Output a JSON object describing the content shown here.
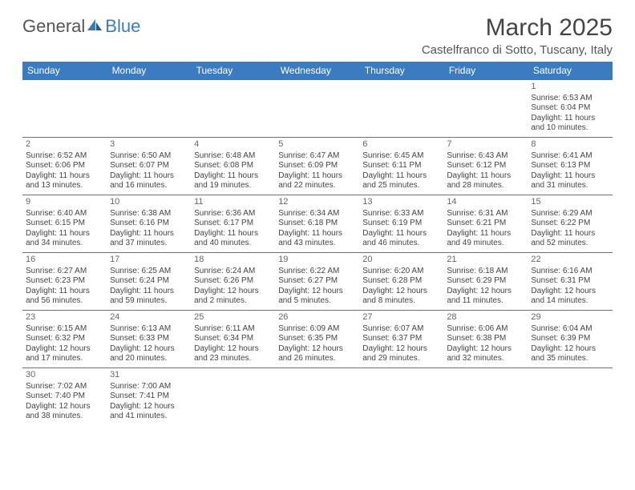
{
  "logo": {
    "part1": "General",
    "part2": "Blue"
  },
  "title": "March 2025",
  "location": "Castelfranco di Sotto, Tuscany, Italy",
  "weekdays": [
    "Sunday",
    "Monday",
    "Tuesday",
    "Wednesday",
    "Thursday",
    "Friday",
    "Saturday"
  ],
  "colors": {
    "header_bg": "#3b7bbf",
    "border": "#3b7bbf",
    "text": "#444"
  },
  "days": [
    {
      "n": 1,
      "sr": "6:53 AM",
      "ss": "6:04 PM",
      "dl": "11 hours and 10 minutes."
    },
    {
      "n": 2,
      "sr": "6:52 AM",
      "ss": "6:06 PM",
      "dl": "11 hours and 13 minutes."
    },
    {
      "n": 3,
      "sr": "6:50 AM",
      "ss": "6:07 PM",
      "dl": "11 hours and 16 minutes."
    },
    {
      "n": 4,
      "sr": "6:48 AM",
      "ss": "6:08 PM",
      "dl": "11 hours and 19 minutes."
    },
    {
      "n": 5,
      "sr": "6:47 AM",
      "ss": "6:09 PM",
      "dl": "11 hours and 22 minutes."
    },
    {
      "n": 6,
      "sr": "6:45 AM",
      "ss": "6:11 PM",
      "dl": "11 hours and 25 minutes."
    },
    {
      "n": 7,
      "sr": "6:43 AM",
      "ss": "6:12 PM",
      "dl": "11 hours and 28 minutes."
    },
    {
      "n": 8,
      "sr": "6:41 AM",
      "ss": "6:13 PM",
      "dl": "11 hours and 31 minutes."
    },
    {
      "n": 9,
      "sr": "6:40 AM",
      "ss": "6:15 PM",
      "dl": "11 hours and 34 minutes."
    },
    {
      "n": 10,
      "sr": "6:38 AM",
      "ss": "6:16 PM",
      "dl": "11 hours and 37 minutes."
    },
    {
      "n": 11,
      "sr": "6:36 AM",
      "ss": "6:17 PM",
      "dl": "11 hours and 40 minutes."
    },
    {
      "n": 12,
      "sr": "6:34 AM",
      "ss": "6:18 PM",
      "dl": "11 hours and 43 minutes."
    },
    {
      "n": 13,
      "sr": "6:33 AM",
      "ss": "6:19 PM",
      "dl": "11 hours and 46 minutes."
    },
    {
      "n": 14,
      "sr": "6:31 AM",
      "ss": "6:21 PM",
      "dl": "11 hours and 49 minutes."
    },
    {
      "n": 15,
      "sr": "6:29 AM",
      "ss": "6:22 PM",
      "dl": "11 hours and 52 minutes."
    },
    {
      "n": 16,
      "sr": "6:27 AM",
      "ss": "6:23 PM",
      "dl": "11 hours and 56 minutes."
    },
    {
      "n": 17,
      "sr": "6:25 AM",
      "ss": "6:24 PM",
      "dl": "11 hours and 59 minutes."
    },
    {
      "n": 18,
      "sr": "6:24 AM",
      "ss": "6:26 PM",
      "dl": "12 hours and 2 minutes."
    },
    {
      "n": 19,
      "sr": "6:22 AM",
      "ss": "6:27 PM",
      "dl": "12 hours and 5 minutes."
    },
    {
      "n": 20,
      "sr": "6:20 AM",
      "ss": "6:28 PM",
      "dl": "12 hours and 8 minutes."
    },
    {
      "n": 21,
      "sr": "6:18 AM",
      "ss": "6:29 PM",
      "dl": "12 hours and 11 minutes."
    },
    {
      "n": 22,
      "sr": "6:16 AM",
      "ss": "6:31 PM",
      "dl": "12 hours and 14 minutes."
    },
    {
      "n": 23,
      "sr": "6:15 AM",
      "ss": "6:32 PM",
      "dl": "12 hours and 17 minutes."
    },
    {
      "n": 24,
      "sr": "6:13 AM",
      "ss": "6:33 PM",
      "dl": "12 hours and 20 minutes."
    },
    {
      "n": 25,
      "sr": "6:11 AM",
      "ss": "6:34 PM",
      "dl": "12 hours and 23 minutes."
    },
    {
      "n": 26,
      "sr": "6:09 AM",
      "ss": "6:35 PM",
      "dl": "12 hours and 26 minutes."
    },
    {
      "n": 27,
      "sr": "6:07 AM",
      "ss": "6:37 PM",
      "dl": "12 hours and 29 minutes."
    },
    {
      "n": 28,
      "sr": "6:06 AM",
      "ss": "6:38 PM",
      "dl": "12 hours and 32 minutes."
    },
    {
      "n": 29,
      "sr": "6:04 AM",
      "ss": "6:39 PM",
      "dl": "12 hours and 35 minutes."
    },
    {
      "n": 30,
      "sr": "7:02 AM",
      "ss": "7:40 PM",
      "dl": "12 hours and 38 minutes."
    },
    {
      "n": 31,
      "sr": "7:00 AM",
      "ss": "7:41 PM",
      "dl": "12 hours and 41 minutes."
    }
  ],
  "labels": {
    "sunrise": "Sunrise:",
    "sunset": "Sunset:",
    "daylight": "Daylight:"
  },
  "first_day_col": 6
}
